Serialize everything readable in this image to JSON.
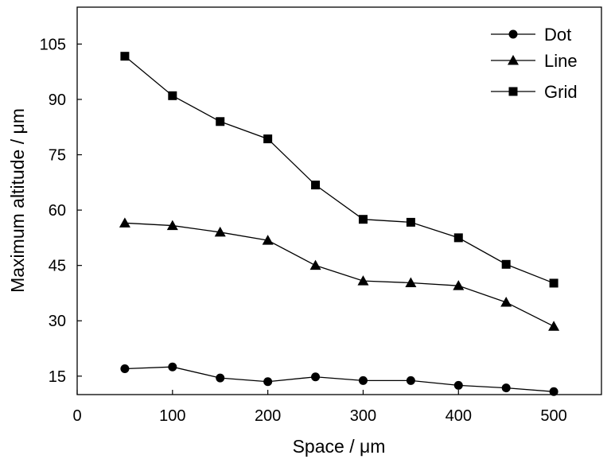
{
  "chart_data": {
    "type": "line",
    "title": "",
    "xlabel": "Space / μm",
    "ylabel": "Maximum altitude / μm",
    "xlim": [
      0,
      550
    ],
    "ylim": [
      10,
      115
    ],
    "xticks": [
      0,
      100,
      200,
      300,
      400,
      500
    ],
    "yticks": [
      15,
      30,
      45,
      60,
      75,
      90,
      105
    ],
    "grid": false,
    "legend_position": "top-right",
    "x": [
      50,
      100,
      150,
      200,
      250,
      300,
      350,
      400,
      450,
      500
    ],
    "series": [
      {
        "name": "Dot",
        "marker": "circle",
        "values": [
          17.0,
          17.5,
          14.5,
          13.5,
          14.8,
          13.8,
          13.8,
          12.5,
          11.8,
          10.8
        ]
      },
      {
        "name": "Line",
        "marker": "triangle",
        "values": [
          56.5,
          55.8,
          54.0,
          51.8,
          45.0,
          40.8,
          40.3,
          39.5,
          35.0,
          28.5
        ]
      },
      {
        "name": "Grid",
        "marker": "square",
        "values": [
          101.7,
          91.0,
          84.0,
          79.3,
          66.8,
          57.5,
          56.7,
          52.5,
          45.3,
          40.2
        ]
      }
    ],
    "colors": {
      "line": "#000000",
      "marker": "#000000"
    }
  }
}
